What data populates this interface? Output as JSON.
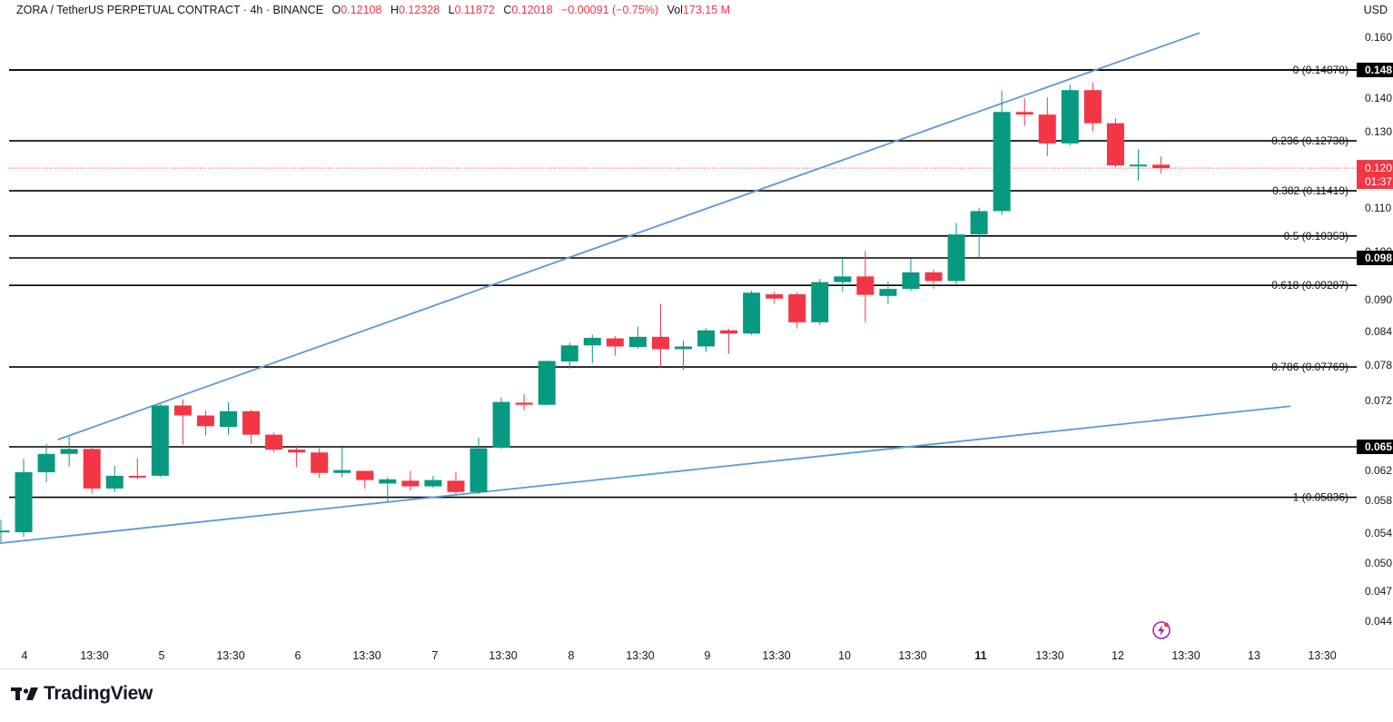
{
  "header": {
    "symbol": "ZORA / TetherUS PERPETUAL CONTRACT · 4h · BINANCE",
    "o_label": "O",
    "o_value": "0.12108",
    "h_label": "H",
    "h_value": "0.12328",
    "l_label": "L",
    "l_value": "0.11872",
    "c_label": "C",
    "c_value": "0.12018",
    "change": "−0.00091 (−0.75%)",
    "vol_label": "Vol",
    "vol_value": "173.15 M",
    "currency": "USD"
  },
  "brand": {
    "name": "TradingView"
  },
  "colors": {
    "up": "#089981",
    "down": "#f23645",
    "trendline": "#5b9bd5",
    "fib": "#000000",
    "price_line": "#f23645"
  },
  "chart_data": {
    "type": "candlestick",
    "timeframe": "4h",
    "y_axis": {
      "ticks": [
        "0.160",
        "0.140",
        "0.130",
        "0.110",
        "0.100",
        "0.090",
        "0.084",
        "0.078",
        "0.072",
        "0.062",
        "0.058",
        "0.054",
        "0.050",
        "0.047",
        "0.044"
      ]
    },
    "x_axis": {
      "ticks": [
        "4",
        "13:30",
        "5",
        "13:30",
        "6",
        "13:30",
        "7",
        "13:30",
        "8",
        "13:30",
        "9",
        "13:30",
        "10",
        "13:30",
        "11",
        "13:30",
        "12",
        "13:30",
        "13",
        "13:30"
      ],
      "bold_tick": "11"
    },
    "fib_levels": [
      {
        "label": "0 (0.14878)",
        "price": 0.14878
      },
      {
        "label": "0.236 (0.12738)",
        "price": 0.12738
      },
      {
        "label": "0.382 (0.11419)",
        "price": 0.11419
      },
      {
        "label": "0.5 (0.10353)",
        "price": 0.10353
      },
      {
        "label": "0.618 (0.09287)",
        "price": 0.09287
      },
      {
        "label": "0.786 (0.07769)",
        "price": 0.07769
      },
      {
        "label": "1 (0.05836)",
        "price": 0.05836
      }
    ],
    "horizontal_levels": [
      {
        "price": 0.14878,
        "badge": "0.148"
      },
      {
        "price": 0.0982,
        "badge": "0.098"
      },
      {
        "price": 0.0655,
        "badge": "0.065"
      }
    ],
    "last_price": {
      "price": 0.12018,
      "badge": "0.120",
      "countdown": "01:37"
    },
    "trendlines": [
      {
        "name": "upper",
        "from": {
          "bar": 2.5,
          "price": 0.0665
        },
        "to": {
          "bar": 52.7,
          "price": 0.1615
        }
      },
      {
        "name": "lower",
        "from": {
          "bar": -0.5,
          "price": 0.0525
        },
        "to": {
          "bar": 56.7,
          "price": 0.0712
        }
      }
    ],
    "candles": [
      {
        "o": 0.0541,
        "h": 0.0556,
        "l": 0.0528,
        "c": 0.0543
      },
      {
        "o": 0.0541,
        "h": 0.0638,
        "l": 0.0535,
        "c": 0.0619
      },
      {
        "o": 0.0619,
        "h": 0.0659,
        "l": 0.0605,
        "c": 0.0645
      },
      {
        "o": 0.0645,
        "h": 0.0669,
        "l": 0.0627,
        "c": 0.0652
      },
      {
        "o": 0.0652,
        "h": 0.0655,
        "l": 0.0589,
        "c": 0.0596
      },
      {
        "o": 0.0596,
        "h": 0.0628,
        "l": 0.0591,
        "c": 0.0614
      },
      {
        "o": 0.0614,
        "h": 0.0639,
        "l": 0.0609,
        "c": 0.0612
      },
      {
        "o": 0.0614,
        "h": 0.0715,
        "l": 0.0612,
        "c": 0.0713
      },
      {
        "o": 0.0713,
        "h": 0.0722,
        "l": 0.0658,
        "c": 0.0699
      },
      {
        "o": 0.0699,
        "h": 0.0706,
        "l": 0.0671,
        "c": 0.0684
      },
      {
        "o": 0.0683,
        "h": 0.0718,
        "l": 0.0672,
        "c": 0.0705
      },
      {
        "o": 0.0705,
        "h": 0.0707,
        "l": 0.0659,
        "c": 0.0672
      },
      {
        "o": 0.0672,
        "h": 0.0675,
        "l": 0.0647,
        "c": 0.0651
      },
      {
        "o": 0.0651,
        "h": 0.0657,
        "l": 0.0626,
        "c": 0.0647
      },
      {
        "o": 0.0647,
        "h": 0.0653,
        "l": 0.0611,
        "c": 0.0618
      },
      {
        "o": 0.0618,
        "h": 0.0654,
        "l": 0.0612,
        "c": 0.0622
      },
      {
        "o": 0.0621,
        "h": 0.0619,
        "l": 0.0596,
        "c": 0.0608
      },
      {
        "o": 0.0603,
        "h": 0.0612,
        "l": 0.0577,
        "c": 0.0609
      },
      {
        "o": 0.0607,
        "h": 0.0621,
        "l": 0.0593,
        "c": 0.0599
      },
      {
        "o": 0.0599,
        "h": 0.0614,
        "l": 0.0597,
        "c": 0.0608
      },
      {
        "o": 0.0607,
        "h": 0.0619,
        "l": 0.0588,
        "c": 0.0591
      },
      {
        "o": 0.0591,
        "h": 0.0668,
        "l": 0.0588,
        "c": 0.0653
      },
      {
        "o": 0.0654,
        "h": 0.0725,
        "l": 0.0652,
        "c": 0.0718
      },
      {
        "o": 0.0717,
        "h": 0.0731,
        "l": 0.0706,
        "c": 0.0714
      },
      {
        "o": 0.0714,
        "h": 0.0789,
        "l": 0.0713,
        "c": 0.0788
      },
      {
        "o": 0.0787,
        "h": 0.0822,
        "l": 0.0774,
        "c": 0.0817
      },
      {
        "o": 0.0817,
        "h": 0.0837,
        "l": 0.0784,
        "c": 0.0831
      },
      {
        "o": 0.083,
        "h": 0.0834,
        "l": 0.0798,
        "c": 0.0815
      },
      {
        "o": 0.0814,
        "h": 0.0852,
        "l": 0.0811,
        "c": 0.0833
      },
      {
        "o": 0.0833,
        "h": 0.0894,
        "l": 0.0776,
        "c": 0.081
      },
      {
        "o": 0.081,
        "h": 0.0826,
        "l": 0.0772,
        "c": 0.0815
      },
      {
        "o": 0.0815,
        "h": 0.0849,
        "l": 0.0805,
        "c": 0.0845
      },
      {
        "o": 0.0845,
        "h": 0.0848,
        "l": 0.0801,
        "c": 0.0839
      },
      {
        "o": 0.0839,
        "h": 0.0919,
        "l": 0.0836,
        "c": 0.0915
      },
      {
        "o": 0.0912,
        "h": 0.0917,
        "l": 0.0895,
        "c": 0.0904
      },
      {
        "o": 0.0912,
        "h": 0.0916,
        "l": 0.0849,
        "c": 0.086
      },
      {
        "o": 0.086,
        "h": 0.0941,
        "l": 0.0855,
        "c": 0.0935
      },
      {
        "o": 0.0935,
        "h": 0.098,
        "l": 0.0917,
        "c": 0.0946
      },
      {
        "o": 0.0946,
        "h": 0.0999,
        "l": 0.086,
        "c": 0.0911
      },
      {
        "o": 0.0909,
        "h": 0.0936,
        "l": 0.0894,
        "c": 0.0922
      },
      {
        "o": 0.0922,
        "h": 0.098,
        "l": 0.0918,
        "c": 0.0954
      },
      {
        "o": 0.0954,
        "h": 0.096,
        "l": 0.0922,
        "c": 0.0937
      },
      {
        "o": 0.0937,
        "h": 0.1066,
        "l": 0.0929,
        "c": 0.1039
      },
      {
        "o": 0.1039,
        "h": 0.1102,
        "l": 0.0982,
        "c": 0.1094
      },
      {
        "o": 0.1094,
        "h": 0.1425,
        "l": 0.1085,
        "c": 0.1361
      },
      {
        "o": 0.1361,
        "h": 0.1402,
        "l": 0.1319,
        "c": 0.1353
      },
      {
        "o": 0.1353,
        "h": 0.1405,
        "l": 0.1233,
        "c": 0.1267
      },
      {
        "o": 0.1267,
        "h": 0.1443,
        "l": 0.1262,
        "c": 0.1427
      },
      {
        "o": 0.1427,
        "h": 0.145,
        "l": 0.1303,
        "c": 0.1327
      },
      {
        "o": 0.1327,
        "h": 0.1342,
        "l": 0.1204,
        "c": 0.1209
      },
      {
        "o": 0.1209,
        "h": 0.1251,
        "l": 0.1169,
        "c": 0.1211
      },
      {
        "o": 0.12108,
        "h": 0.12328,
        "l": 0.11872,
        "c": 0.12018
      }
    ]
  }
}
